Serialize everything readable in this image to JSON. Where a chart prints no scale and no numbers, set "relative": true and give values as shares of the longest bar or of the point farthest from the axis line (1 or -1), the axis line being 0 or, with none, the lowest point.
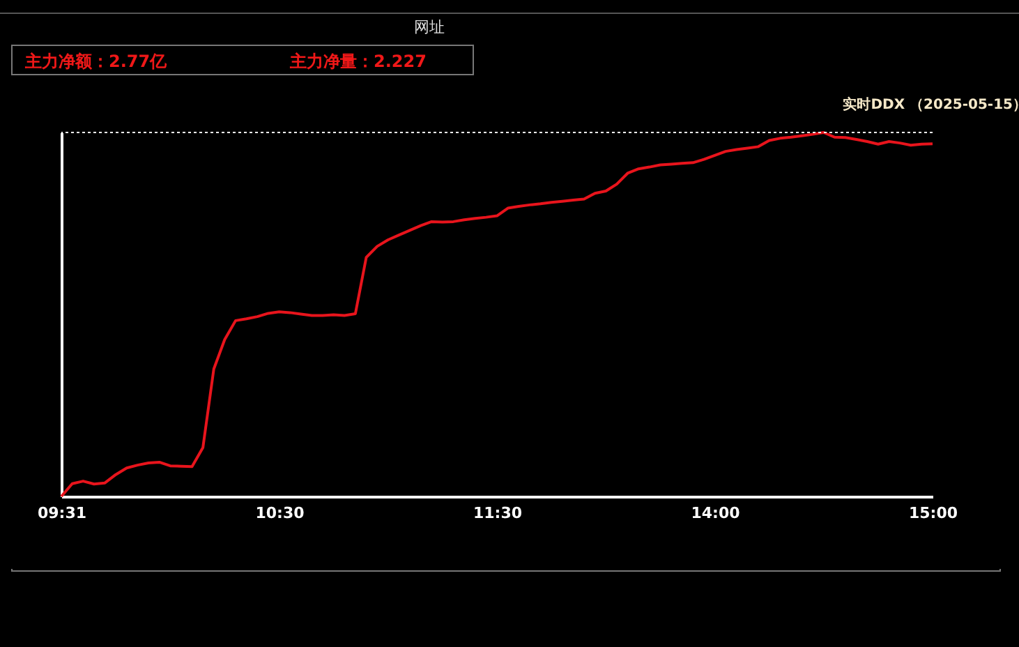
{
  "chart_data": {
    "type": "line",
    "title": "实时DDX （2025-05-15）",
    "annotations": [
      "网址",
      "主力净额：2.77亿",
      "主力净量：2.227"
    ],
    "relative": true,
    "categories": [
      "09:31",
      null,
      null,
      null,
      null,
      null,
      null,
      null,
      null,
      null,
      null,
      null,
      null,
      null,
      null,
      null,
      null,
      null,
      null,
      null,
      "10:30",
      null,
      null,
      null,
      null,
      null,
      null,
      null,
      null,
      null,
      null,
      null,
      null,
      null,
      null,
      null,
      null,
      null,
      null,
      null,
      "11:30",
      null,
      null,
      null,
      null,
      null,
      null,
      null,
      null,
      null,
      null,
      null,
      null,
      null,
      null,
      null,
      null,
      null,
      null,
      null,
      "14:00",
      null,
      null,
      null,
      null,
      null,
      null,
      null,
      null,
      null,
      null,
      null,
      null,
      null,
      null,
      null,
      null,
      null,
      null,
      null,
      "15:00"
    ],
    "ref_lines": [
      {
        "axis": "y",
        "value": 1,
        "color": "#ffffff",
        "line_style": "dotted"
      }
    ],
    "series": [
      {
        "color": "#e8141c",
        "values": [
          0,
          0.035,
          0.042,
          0.034,
          0.037,
          0.06,
          0.078,
          0.086,
          0.092,
          0.094,
          0.084,
          0.083,
          0.082,
          0.134,
          0.35,
          0.431,
          0.483,
          0.488,
          0.494,
          0.503,
          0.507,
          0.505,
          0.501,
          0.497,
          0.497,
          0.499,
          0.497,
          0.502,
          0.657,
          0.687,
          0.705,
          0.718,
          0.731,
          0.744,
          0.755,
          0.754,
          0.755,
          0.76,
          0.764,
          0.767,
          0.771,
          0.792,
          0.797,
          0.801,
          0.804,
          0.808,
          0.811,
          0.814,
          0.817,
          0.833,
          0.839,
          0.858,
          0.888,
          0.9,
          0.905,
          0.911,
          0.913,
          0.915,
          0.917,
          0.926,
          0.937,
          0.948,
          0.953,
          0.957,
          0.961,
          0.978,
          0.984,
          0.987,
          0.991,
          0.995,
          1,
          0.987,
          0.986,
          0.981,
          0.975,
          0.968,
          0.975,
          0.971,
          0.965,
          0.968,
          0.969
        ]
      }
    ]
  }
}
